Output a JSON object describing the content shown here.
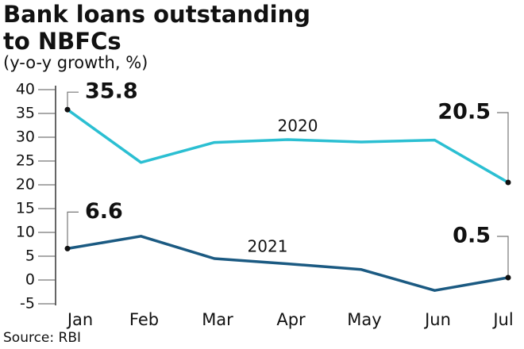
{
  "chart_data": {
    "type": "line",
    "title": "Bank loans outstanding to NBFCs",
    "subtitle": "(y-o-y growth, %)",
    "source": "Source: RBI",
    "categories": [
      "Jan",
      "Feb",
      "Mar",
      "Apr",
      "May",
      "Jun",
      "Jul"
    ],
    "series": [
      {
        "name": "2020",
        "color": "#2bbfd2",
        "values": [
          35.8,
          24.7,
          28.9,
          29.5,
          29.0,
          29.4,
          20.5
        ]
      },
      {
        "name": "2021",
        "color": "#1b5a82",
        "values": [
          6.6,
          9.2,
          4.5,
          3.4,
          2.2,
          -2.2,
          0.5
        ]
      }
    ],
    "ylim": [
      -5,
      40
    ],
    "yticks": [
      -5,
      0,
      5,
      10,
      15,
      20,
      25,
      30,
      35,
      40
    ],
    "grid": false
  }
}
